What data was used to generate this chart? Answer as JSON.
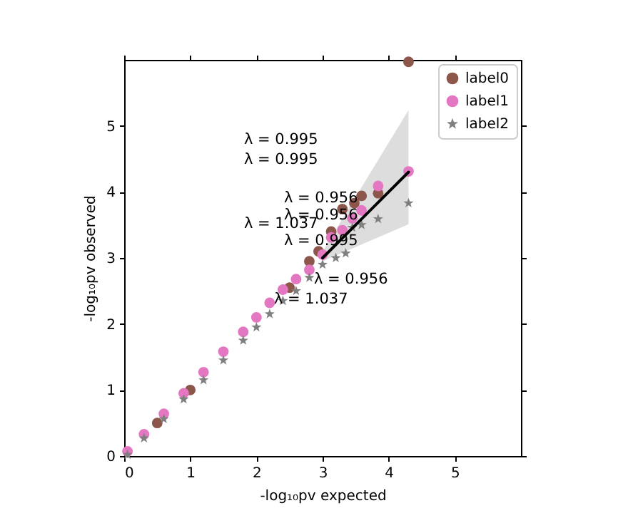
{
  "chart_data": {
    "type": "scatter",
    "xlabel": "-log₁₀pv expected",
    "ylabel": "-log₁₀pv observed",
    "xlim": [
      0,
      6
    ],
    "ylim": [
      0,
      6
    ],
    "xticks": [
      0,
      1,
      2,
      3,
      4,
      5
    ],
    "yticks": [
      0,
      1,
      2,
      3,
      4,
      5
    ],
    "grid": false,
    "legend": "top right",
    "marker": "circle",
    "series": [
      {
        "name": "label0",
        "color": "#8c564b",
        "x": [
          0.5,
          1.0,
          2.5,
          2.8,
          2.94,
          3.13,
          3.3,
          3.48,
          3.59,
          3.84,
          4.3
        ],
        "values": [
          0.5,
          1.0,
          2.55,
          2.95,
          3.1,
          3.4,
          3.74,
          3.83,
          3.94,
          3.98,
          5.97
        ]
      },
      {
        "name": "label1",
        "color": "#e377c2",
        "x": [
          0.05,
          0.3,
          0.6,
          0.9,
          1.2,
          1.5,
          1.8,
          2.0,
          2.2,
          2.4,
          2.6,
          2.8,
          3.0,
          3.13,
          3.3,
          3.45,
          3.59,
          3.84,
          4.3
        ],
        "values": [
          0.07,
          0.33,
          0.64,
          0.95,
          1.27,
          1.58,
          1.88,
          2.1,
          2.32,
          2.52,
          2.68,
          2.82,
          3.05,
          3.31,
          3.42,
          3.6,
          3.72,
          4.09,
          4.31
        ]
      },
      {
        "name": "label2",
        "color": "#7f7f7f",
        "marker": "star",
        "x": [
          0.05,
          0.3,
          0.6,
          0.9,
          1.2,
          1.5,
          1.8,
          2.0,
          2.2,
          2.4,
          2.6,
          2.8,
          3.0,
          3.2,
          3.35,
          3.45,
          3.59,
          3.84,
          4.3
        ],
        "values": [
          0.02,
          0.27,
          0.56,
          0.86,
          1.15,
          1.45,
          1.75,
          1.95,
          2.15,
          2.35,
          2.5,
          2.7,
          2.9,
          3.0,
          3.07,
          3.46,
          3.5,
          3.59,
          3.83
        ]
      },
      {
        "type": "line",
        "color": "#000000",
        "marker": "none",
        "x": [
          3.0,
          4.3
        ],
        "values": [
          3.0,
          4.3
        ],
        "lower": [
          2.95,
          3.51
        ],
        "upper": [
          3.1,
          5.24
        ]
      }
    ],
    "annotations": [
      "λ = 0.995",
      "λ = 0.995",
      "λ = 0.956",
      "λ = 0.956",
      "λ = 1.037",
      "λ = 0.995",
      "λ = 0.956",
      "λ = 1.037"
    ]
  }
}
